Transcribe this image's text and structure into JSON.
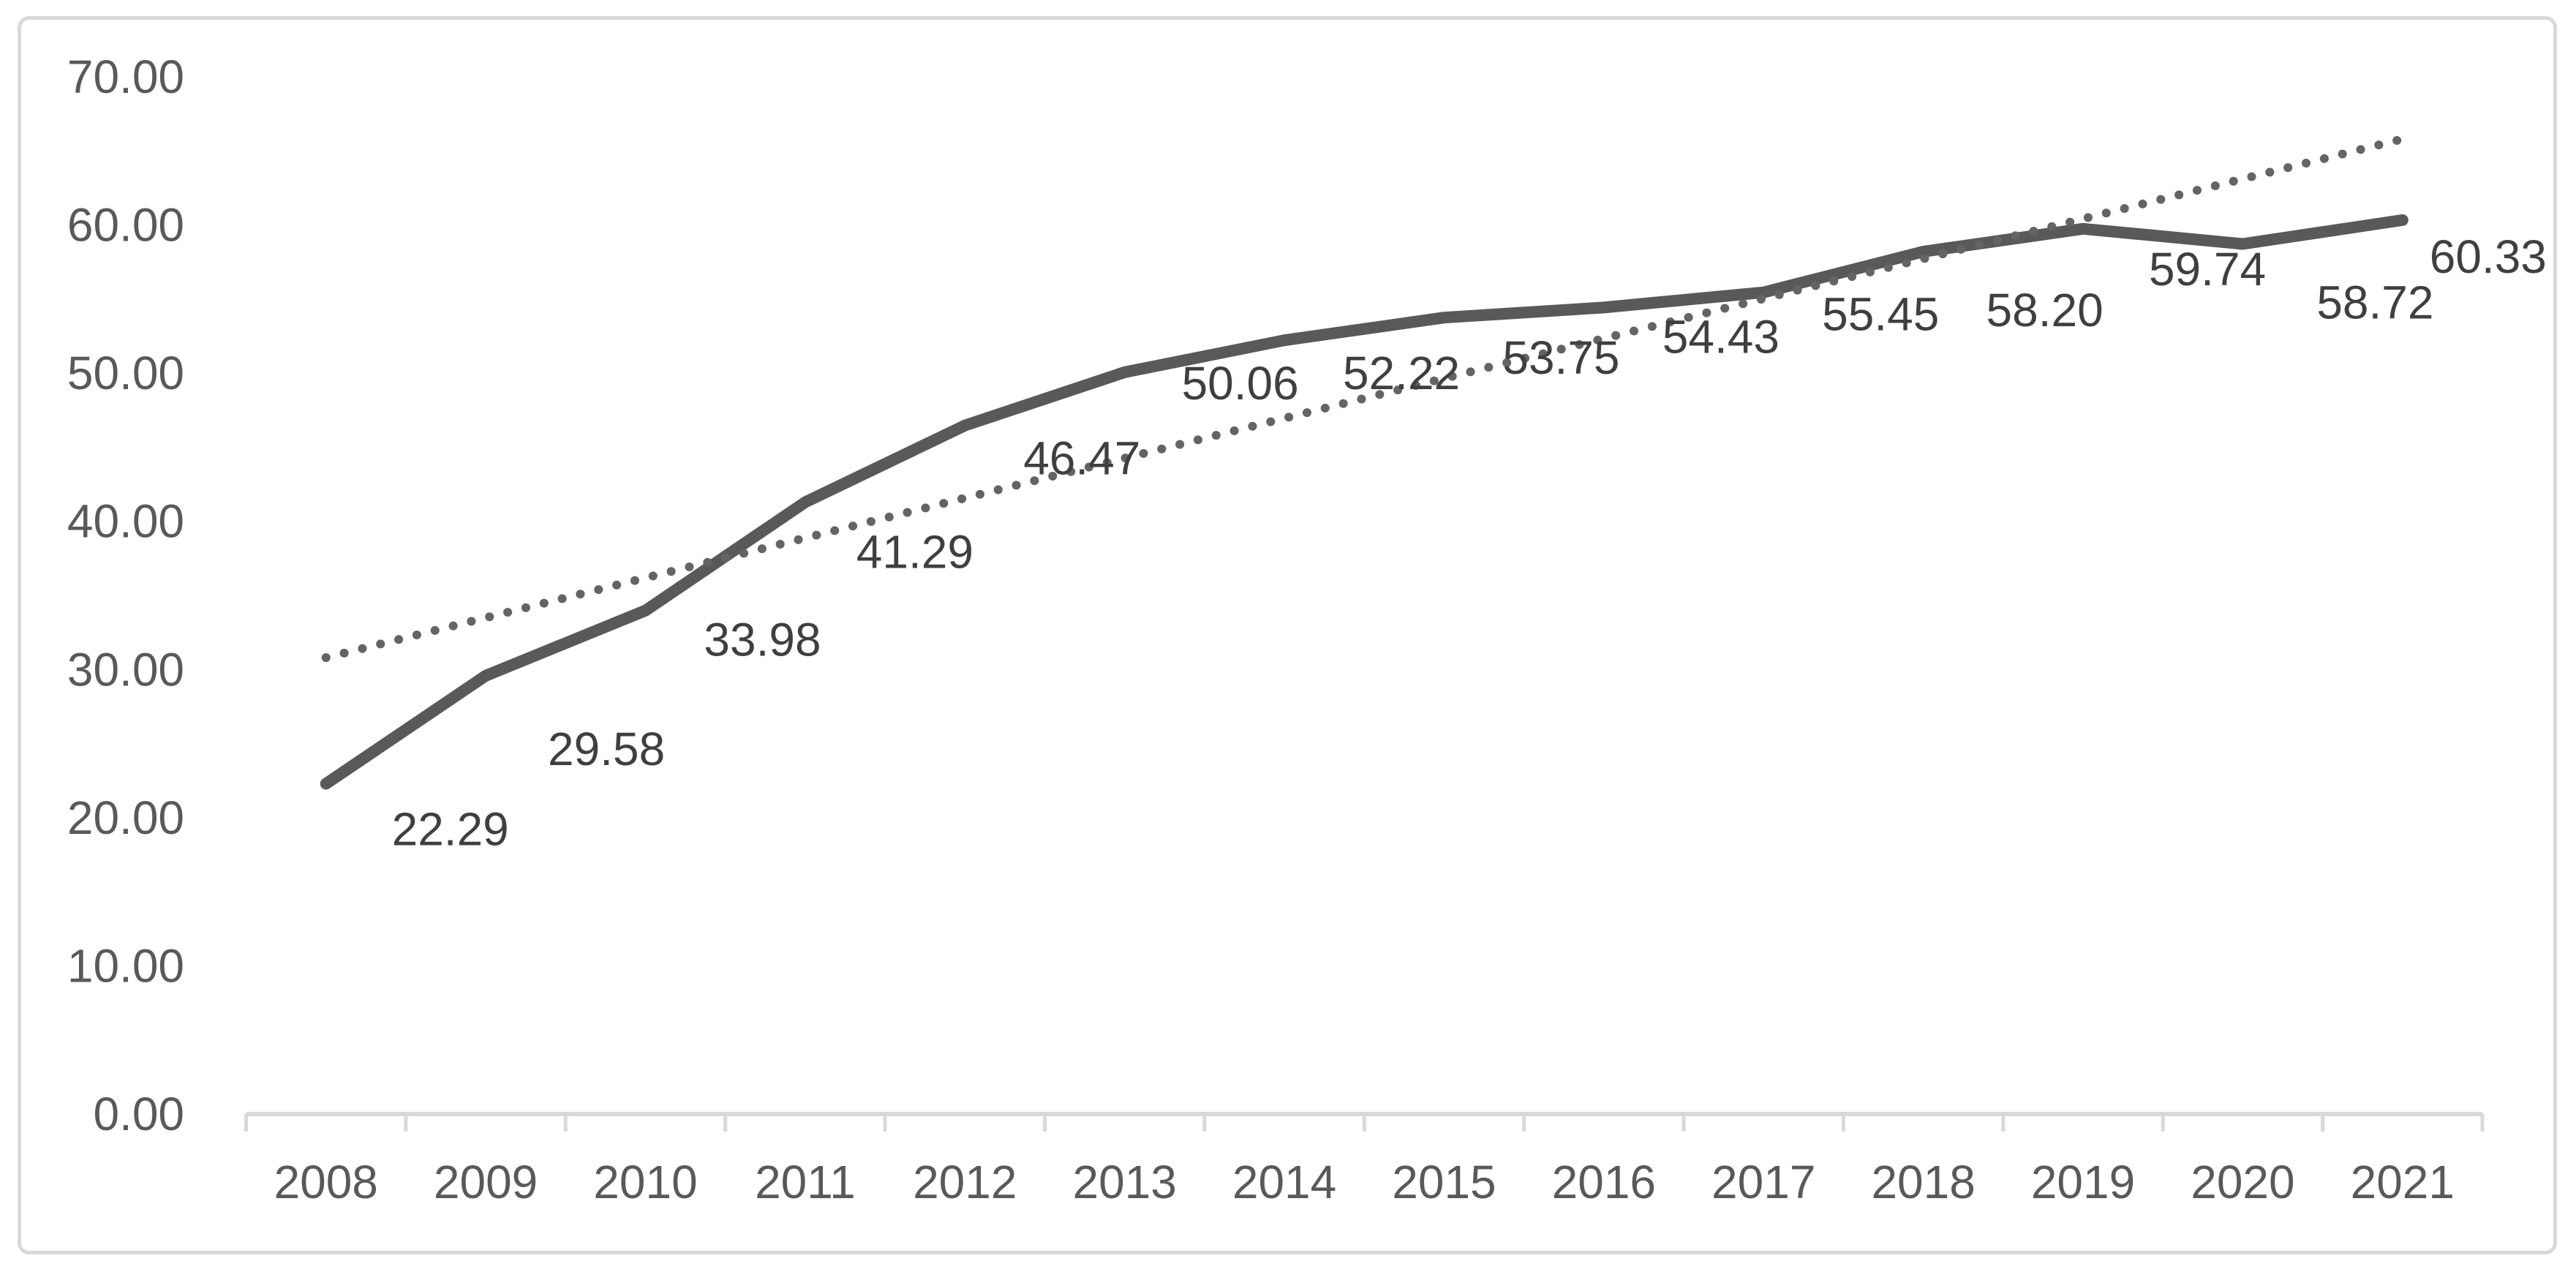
{
  "chart_data": {
    "type": "line",
    "title": "",
    "xlabel": "",
    "ylabel": "",
    "categories": [
      "2008",
      "2009",
      "2010",
      "2011",
      "2012",
      "2013",
      "2014",
      "2015",
      "2016",
      "2017",
      "2018",
      "2019",
      "2020",
      "2021"
    ],
    "series": [
      {
        "name": "values",
        "values": [
          22.29,
          29.58,
          33.98,
          41.29,
          46.47,
          50.06,
          52.22,
          53.75,
          54.43,
          55.45,
          58.2,
          59.74,
          58.72,
          60.33
        ],
        "labels": [
          "22.29",
          "29.58",
          "33.98",
          "41.29",
          "46.47",
          "50.06",
          "52.22",
          "53.75",
          "54.43",
          "55.45",
          "58.20",
          "59.74",
          "58.72",
          "60.33"
        ],
        "style": "solid"
      }
    ],
    "trendline": {
      "type": "linear",
      "style": "dotted",
      "value_at_first_category": 30.8,
      "value_at_last_category": 65.8
    },
    "y_axis": {
      "min": 0,
      "max": 70,
      "step": 10,
      "tick_labels": [
        "0.00",
        "10.00",
        "20.00",
        "30.00",
        "40.00",
        "50.00",
        "60.00",
        "70.00"
      ]
    },
    "ylim": [
      0,
      70
    ],
    "grid": false,
    "legend": "none",
    "data_labels_shown": true
  },
  "colors": {
    "background": "#ffffff",
    "border": "#d9d9d9",
    "axis_line": "#d9d9d9",
    "tick_mark": "#d9d9d9",
    "axis_label": "#595959",
    "data_label": "#3f3f3f",
    "series_line": "#595959",
    "trendline": "#646464"
  }
}
